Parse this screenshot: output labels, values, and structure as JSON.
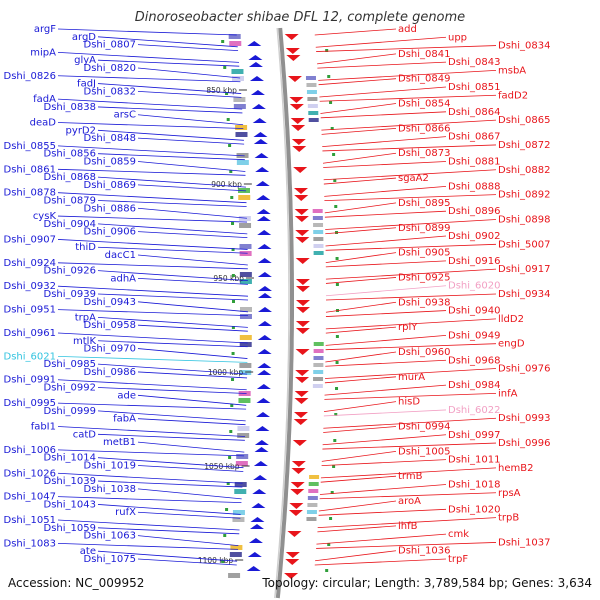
{
  "title": "Dinoroseobacter shibae DFL 12, complete genome",
  "footer": {
    "accession": "Accession: NC_009952",
    "stats": "Topology: circular; Length: 3,789,584 bp; Genes: 3,634"
  },
  "colors": {
    "left_strand": "#1a1ad6",
    "right_strand": "#e8151b",
    "rna": "#33c4e0",
    "pseudo": "#f2a0c4",
    "backbone": "#909090",
    "tick": "#2f9e3a"
  },
  "kbp_marks": [
    {
      "label": "850 kbp"
    },
    {
      "label": "900 kbp"
    },
    {
      "label": "950 kbp"
    },
    {
      "label": "1000 kbp"
    },
    {
      "label": "1050 kbp"
    },
    {
      "label": "1100 kbp"
    }
  ],
  "left_genes": [
    {
      "name": "argF",
      "kind": "cds"
    },
    {
      "name": "argD",
      "kind": "cds"
    },
    {
      "name": "Dshi_0807",
      "kind": "cds"
    },
    {
      "name": "mipA",
      "kind": "cds"
    },
    {
      "name": "glyA",
      "kind": "cds"
    },
    {
      "name": "Dshi_0820",
      "kind": "cds"
    },
    {
      "name": "Dshi_0826",
      "kind": "cds"
    },
    {
      "name": "fadJ",
      "kind": "cds"
    },
    {
      "name": "Dshi_0832",
      "kind": "cds"
    },
    {
      "name": "fadA",
      "kind": "cds"
    },
    {
      "name": "Dshi_0838",
      "kind": "cds"
    },
    {
      "name": "arsC",
      "kind": "cds"
    },
    {
      "name": "deaD",
      "kind": "cds"
    },
    {
      "name": "pyrD2",
      "kind": "cds"
    },
    {
      "name": "Dshi_0848",
      "kind": "cds"
    },
    {
      "name": "Dshi_0855",
      "kind": "cds"
    },
    {
      "name": "Dshi_0856",
      "kind": "cds"
    },
    {
      "name": "Dshi_0859",
      "kind": "cds"
    },
    {
      "name": "Dshi_0861",
      "kind": "cds"
    },
    {
      "name": "Dshi_0868",
      "kind": "cds"
    },
    {
      "name": "Dshi_0869",
      "kind": "cds"
    },
    {
      "name": "Dshi_0878",
      "kind": "cds"
    },
    {
      "name": "Dshi_0879",
      "kind": "cds"
    },
    {
      "name": "Dshi_0886",
      "kind": "cds"
    },
    {
      "name": "cysK",
      "kind": "cds"
    },
    {
      "name": "Dshi_0904",
      "kind": "cds"
    },
    {
      "name": "Dshi_0906",
      "kind": "cds"
    },
    {
      "name": "Dshi_0907",
      "kind": "cds"
    },
    {
      "name": "thiD",
      "kind": "cds"
    },
    {
      "name": "dacC1",
      "kind": "cds"
    },
    {
      "name": "Dshi_0924",
      "kind": "cds"
    },
    {
      "name": "Dshi_0926",
      "kind": "cds"
    },
    {
      "name": "adhA",
      "kind": "cds"
    },
    {
      "name": "Dshi_0932",
      "kind": "cds"
    },
    {
      "name": "Dshi_0939",
      "kind": "cds"
    },
    {
      "name": "Dshi_0943",
      "kind": "cds"
    },
    {
      "name": "Dshi_0951",
      "kind": "cds"
    },
    {
      "name": "trpA",
      "kind": "cds"
    },
    {
      "name": "Dshi_0958",
      "kind": "cds"
    },
    {
      "name": "Dshi_0961",
      "kind": "cds"
    },
    {
      "name": "mtlK",
      "kind": "cds"
    },
    {
      "name": "Dshi_0970",
      "kind": "cds"
    },
    {
      "name": "Dshi_6021",
      "kind": "rna"
    },
    {
      "name": "Dshi_0985",
      "kind": "cds"
    },
    {
      "name": "Dshi_0986",
      "kind": "cds"
    },
    {
      "name": "Dshi_0991",
      "kind": "cds"
    },
    {
      "name": "Dshi_0992",
      "kind": "cds"
    },
    {
      "name": "ade",
      "kind": "cds"
    },
    {
      "name": "Dshi_0995",
      "kind": "cds"
    },
    {
      "name": "Dshi_0999",
      "kind": "cds"
    },
    {
      "name": "fabA",
      "kind": "cds"
    },
    {
      "name": "fabI1",
      "kind": "cds"
    },
    {
      "name": "catD",
      "kind": "cds"
    },
    {
      "name": "metB1",
      "kind": "cds"
    },
    {
      "name": "Dshi_1006",
      "kind": "cds"
    },
    {
      "name": "Dshi_1014",
      "kind": "cds"
    },
    {
      "name": "Dshi_1019",
      "kind": "cds"
    },
    {
      "name": "Dshi_1026",
      "kind": "cds"
    },
    {
      "name": "Dshi_1039",
      "kind": "cds"
    },
    {
      "name": "Dshi_1038",
      "kind": "cds"
    },
    {
      "name": "Dshi_1047",
      "kind": "cds"
    },
    {
      "name": "Dshi_1043",
      "kind": "cds"
    },
    {
      "name": "rufX",
      "kind": "cds"
    },
    {
      "name": "Dshi_1051",
      "kind": "cds"
    },
    {
      "name": "Dshi_1059",
      "kind": "cds"
    },
    {
      "name": "Dshi_1063",
      "kind": "cds"
    },
    {
      "name": "Dshi_1083",
      "kind": "cds"
    },
    {
      "name": "ate",
      "kind": "cds"
    },
    {
      "name": "Dshi_1075",
      "kind": "cds"
    }
  ],
  "right_genes": [
    {
      "name": "add",
      "kind": "cds"
    },
    {
      "name": "upp",
      "kind": "cds"
    },
    {
      "name": "Dshi_0834",
      "kind": "cds"
    },
    {
      "name": "Dshi_0841",
      "kind": "cds"
    },
    {
      "name": "Dshi_0843",
      "kind": "cds"
    },
    {
      "name": "msbA",
      "kind": "cds"
    },
    {
      "name": "Dshi_0849",
      "kind": "cds"
    },
    {
      "name": "Dshi_0851",
      "kind": "cds"
    },
    {
      "name": "fadD2",
      "kind": "cds"
    },
    {
      "name": "Dshi_0854",
      "kind": "cds"
    },
    {
      "name": "Dshi_0864",
      "kind": "cds"
    },
    {
      "name": "Dshi_0865",
      "kind": "cds"
    },
    {
      "name": "Dshi_0866",
      "kind": "cds"
    },
    {
      "name": "Dshi_0867",
      "kind": "cds"
    },
    {
      "name": "Dshi_0872",
      "kind": "cds"
    },
    {
      "name": "Dshi_0873",
      "kind": "cds"
    },
    {
      "name": "Dshi_0881",
      "kind": "cds"
    },
    {
      "name": "Dshi_0882",
      "kind": "cds"
    },
    {
      "name": "sgaA2",
      "kind": "cds"
    },
    {
      "name": "Dshi_0888",
      "kind": "cds"
    },
    {
      "name": "Dshi_0892",
      "kind": "cds"
    },
    {
      "name": "Dshi_0895",
      "kind": "cds"
    },
    {
      "name": "Dshi_0896",
      "kind": "cds"
    },
    {
      "name": "Dshi_0898",
      "kind": "cds"
    },
    {
      "name": "Dshi_0899",
      "kind": "cds"
    },
    {
      "name": "Dshi_0902",
      "kind": "cds"
    },
    {
      "name": "Dshi_5007",
      "kind": "cds"
    },
    {
      "name": "Dshi_0905",
      "kind": "cds"
    },
    {
      "name": "Dshi_0916",
      "kind": "cds"
    },
    {
      "name": "Dshi_0917",
      "kind": "cds"
    },
    {
      "name": "Dshi_0925",
      "kind": "cds"
    },
    {
      "name": "Dshi_6020",
      "kind": "pseudo"
    },
    {
      "name": "Dshi_0934",
      "kind": "cds"
    },
    {
      "name": "Dshi_0938",
      "kind": "cds"
    },
    {
      "name": "Dshi_0940",
      "kind": "cds"
    },
    {
      "name": "lldD2",
      "kind": "cds"
    },
    {
      "name": "rplY",
      "kind": "cds"
    },
    {
      "name": "Dshi_0949",
      "kind": "cds"
    },
    {
      "name": "engD",
      "kind": "cds"
    },
    {
      "name": "Dshi_0960",
      "kind": "cds"
    },
    {
      "name": "Dshi_0968",
      "kind": "cds"
    },
    {
      "name": "Dshi_0976",
      "kind": "cds"
    },
    {
      "name": "murA",
      "kind": "cds"
    },
    {
      "name": "Dshi_0984",
      "kind": "cds"
    },
    {
      "name": "infA",
      "kind": "cds"
    },
    {
      "name": "hisD",
      "kind": "cds"
    },
    {
      "name": "Dshi_6022",
      "kind": "pseudo"
    },
    {
      "name": "Dshi_0993",
      "kind": "cds"
    },
    {
      "name": "Dshi_0994",
      "kind": "cds"
    },
    {
      "name": "Dshi_0997",
      "kind": "cds"
    },
    {
      "name": "Dshi_0996",
      "kind": "cds"
    },
    {
      "name": "Dshi_1005",
      "kind": "cds"
    },
    {
      "name": "Dshi_1011",
      "kind": "cds"
    },
    {
      "name": "hemB2",
      "kind": "cds"
    },
    {
      "name": "trmB",
      "kind": "cds"
    },
    {
      "name": "Dshi_1018",
      "kind": "cds"
    },
    {
      "name": "rpsA",
      "kind": "cds"
    },
    {
      "name": "aroA",
      "kind": "cds"
    },
    {
      "name": "Dshi_1020",
      "kind": "cds"
    },
    {
      "name": "trpB",
      "kind": "cds"
    },
    {
      "name": "ihfB",
      "kind": "cds"
    },
    {
      "name": "cmk",
      "kind": "cds"
    },
    {
      "name": "Dshi_1037",
      "kind": "cds"
    },
    {
      "name": "Dshi_1036",
      "kind": "cds"
    },
    {
      "name": "trpF",
      "kind": "cds"
    }
  ]
}
